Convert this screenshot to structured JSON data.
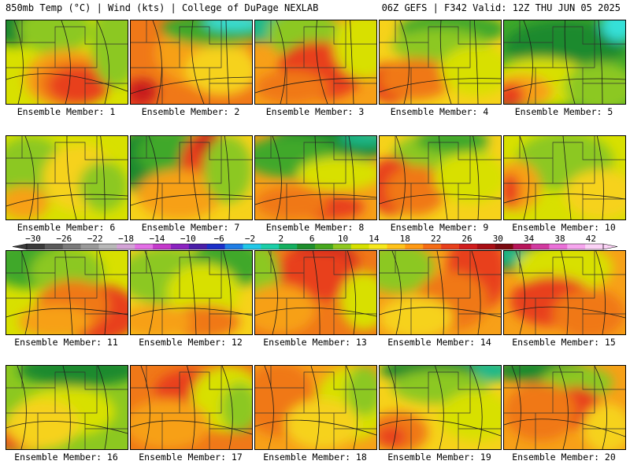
{
  "header": {
    "left": "850mb Temp (°C) | Wind (kts) | College of DuPage NEXLAB",
    "right": "06Z GEFS | F342 Valid: 12Z THU JUN 05 2025"
  },
  "members": [
    "Ensemble Member: 1",
    "Ensemble Member: 2",
    "Ensemble Member: 3",
    "Ensemble Member: 4",
    "Ensemble Member: 5",
    "Ensemble Member: 6",
    "Ensemble Member: 7",
    "Ensemble Member: 8",
    "Ensemble Member: 9",
    "Ensemble Member: 10",
    "Ensemble Member: 11",
    "Ensemble Member: 12",
    "Ensemble Member: 13",
    "Ensemble Member: 14",
    "Ensemble Member: 15",
    "Ensemble Member: 16",
    "Ensemble Member: 17",
    "Ensemble Member: 18",
    "Ensemble Member: 19",
    "Ensemble Member: 20"
  ],
  "colorbar": {
    "labels": [
      "−30",
      "−26",
      "−22",
      "−18",
      "−14",
      "−10",
      "−6",
      "−2",
      "2",
      "6",
      "10",
      "14",
      "18",
      "22",
      "26",
      "30",
      "34",
      "38",
      "42"
    ],
    "colors": [
      "#3a3a3a",
      "#5a5a5a",
      "#7a7a7a",
      "#999999",
      "#b8b8b8",
      "#d3a3d6",
      "#e36fe6",
      "#c43acb",
      "#8b23c0",
      "#4a1ea8",
      "#1b2fc8",
      "#1f7ee6",
      "#22c8e8",
      "#1ccfa8",
      "#14b060",
      "#1e8e2c",
      "#47a81e",
      "#8fc820",
      "#d6e000",
      "#f7e81c",
      "#ffc21a",
      "#ff9a14",
      "#f56c14",
      "#e8401c",
      "#d01c1c",
      "#a80e14",
      "#7a0a10",
      "#b8165a",
      "#d23aa0",
      "#ea70d8",
      "#f6a6ee",
      "#fbd2f6"
    ]
  },
  "palette": {
    "cyan": "#35e0d8",
    "teal": "#1fb88a",
    "darkgreen": "#1d8a2e",
    "green": "#3fa82a",
    "lightgreen": "#8cc820",
    "yellow": "#d8e000",
    "gold": "#f6d21a",
    "orange": "#f7a018",
    "darkorange": "#f07818",
    "red": "#e8401c",
    "darkred": "#c81c1c"
  },
  "panels": [
    {
      "base": "yellow",
      "blobs": [
        [
          "darkgreen",
          0.1,
          0.05,
          0.35,
          0.25
        ],
        [
          "lightgreen",
          0.4,
          0.1,
          0.3,
          0.3
        ],
        [
          "orange",
          0.5,
          0.7,
          0.35,
          0.35
        ],
        [
          "darkorange",
          0.55,
          0.75,
          0.3,
          0.28
        ],
        [
          "red",
          0.6,
          0.78,
          0.25,
          0.22
        ],
        [
          "lightgreen",
          0.9,
          0.3,
          0.2,
          0.5
        ]
      ]
    },
    {
      "base": "darkorange",
      "blobs": [
        [
          "orange",
          0.6,
          0.4,
          0.4,
          0.4
        ],
        [
          "green",
          0.7,
          0.1,
          0.45,
          0.2
        ],
        [
          "cyan",
          0.85,
          0.02,
          0.25,
          0.1
        ],
        [
          "red",
          0.05,
          0.9,
          0.15,
          0.2
        ],
        [
          "gold",
          0.75,
          0.6,
          0.3,
          0.3
        ],
        [
          "darkred",
          0.1,
          0.85,
          0.12,
          0.15
        ]
      ]
    },
    {
      "base": "orange",
      "blobs": [
        [
          "teal",
          0.15,
          0.05,
          0.4,
          0.2
        ],
        [
          "lightgreen",
          0.4,
          0.15,
          0.3,
          0.3
        ],
        [
          "darkred",
          0.5,
          0.55,
          0.3,
          0.3
        ],
        [
          "red",
          0.55,
          0.6,
          0.35,
          0.35
        ],
        [
          "yellow",
          0.9,
          0.3,
          0.25,
          0.4
        ],
        [
          "darkorange",
          0.3,
          0.8,
          0.3,
          0.2
        ]
      ]
    },
    {
      "base": "gold",
      "blobs": [
        [
          "green",
          0.6,
          0.1,
          0.45,
          0.2
        ],
        [
          "lightgreen",
          0.5,
          0.3,
          0.4,
          0.2
        ],
        [
          "red",
          0.1,
          0.75,
          0.2,
          0.25
        ],
        [
          "darkorange",
          0.3,
          0.7,
          0.3,
          0.25
        ],
        [
          "yellow",
          0.8,
          0.6,
          0.3,
          0.3
        ]
      ]
    },
    {
      "base": "green",
      "blobs": [
        [
          "darkgreen",
          0.5,
          0.3,
          0.5,
          0.3
        ],
        [
          "cyan",
          0.95,
          0.05,
          0.15,
          0.2
        ],
        [
          "yellow",
          0.3,
          0.75,
          0.45,
          0.3
        ],
        [
          "orange",
          0.15,
          0.85,
          0.25,
          0.2
        ],
        [
          "red",
          0.05,
          0.9,
          0.12,
          0.15
        ],
        [
          "lightgreen",
          0.8,
          0.8,
          0.3,
          0.3
        ]
      ]
    },
    {
      "base": "yellow",
      "blobs": [
        [
          "lightgreen",
          0.2,
          0.4,
          0.3,
          0.4
        ],
        [
          "orange",
          0.15,
          0.8,
          0.2,
          0.2
        ],
        [
          "gold",
          0.6,
          0.5,
          0.3,
          0.4
        ],
        [
          "lightgreen",
          0.8,
          0.6,
          0.2,
          0.3
        ]
      ]
    },
    {
      "base": "gold",
      "blobs": [
        [
          "darkgreen",
          0.15,
          0.3,
          0.3,
          0.4
        ],
        [
          "green",
          0.35,
          0.2,
          0.3,
          0.3
        ],
        [
          "red",
          0.6,
          0.4,
          0.2,
          0.45
        ],
        [
          "darkred",
          0.65,
          0.1,
          0.1,
          0.2
        ],
        [
          "orange",
          0.4,
          0.7,
          0.35,
          0.3
        ],
        [
          "lightgreen",
          0.8,
          0.4,
          0.2,
          0.4
        ]
      ]
    },
    {
      "base": "orange",
      "blobs": [
        [
          "darkgreen",
          0.6,
          0.1,
          0.5,
          0.25
        ],
        [
          "green",
          0.3,
          0.25,
          0.4,
          0.25
        ],
        [
          "teal",
          0.9,
          0.02,
          0.2,
          0.1
        ],
        [
          "yellow",
          0.7,
          0.45,
          0.35,
          0.2
        ],
        [
          "red",
          0.6,
          0.85,
          0.3,
          0.15
        ],
        [
          "darkorange",
          0.3,
          0.8,
          0.3,
          0.2
        ]
      ]
    },
    {
      "base": "gold",
      "blobs": [
        [
          "lightgreen",
          0.5,
          0.25,
          0.4,
          0.3
        ],
        [
          "red",
          0.1,
          0.6,
          0.2,
          0.35
        ],
        [
          "darkorange",
          0.3,
          0.65,
          0.25,
          0.3
        ],
        [
          "yellow",
          0.75,
          0.5,
          0.3,
          0.3
        ],
        [
          "green",
          0.6,
          0.05,
          0.3,
          0.15
        ]
      ]
    },
    {
      "base": "yellow",
      "blobs": [
        [
          "lightgreen",
          0.5,
          0.3,
          0.4,
          0.35
        ],
        [
          "orange",
          0.1,
          0.6,
          0.2,
          0.3
        ],
        [
          "red",
          0.05,
          0.65,
          0.08,
          0.2
        ],
        [
          "gold",
          0.8,
          0.7,
          0.3,
          0.3
        ]
      ]
    },
    {
      "base": "yellow",
      "blobs": [
        [
          "green",
          0.2,
          0.15,
          0.35,
          0.3
        ],
        [
          "lightgreen",
          0.5,
          0.25,
          0.3,
          0.3
        ],
        [
          "red",
          0.75,
          0.75,
          0.35,
          0.35
        ],
        [
          "darkorange",
          0.55,
          0.65,
          0.3,
          0.3
        ],
        [
          "orange",
          0.4,
          0.85,
          0.3,
          0.2
        ]
      ]
    },
    {
      "base": "gold",
      "blobs": [
        [
          "lightgreen",
          0.3,
          0.3,
          0.4,
          0.35
        ],
        [
          "green",
          0.8,
          0.15,
          0.3,
          0.3
        ],
        [
          "yellow",
          0.6,
          0.5,
          0.3,
          0.35
        ],
        [
          "darkorange",
          0.6,
          0.85,
          0.3,
          0.2
        ],
        [
          "orange",
          0.2,
          0.85,
          0.3,
          0.2
        ]
      ]
    },
    {
      "base": "darkorange",
      "blobs": [
        [
          "darkred",
          0.55,
          0.15,
          0.3,
          0.25
        ],
        [
          "red",
          0.5,
          0.3,
          0.4,
          0.3
        ],
        [
          "lightgreen",
          0.05,
          0.3,
          0.15,
          0.4
        ],
        [
          "orange",
          0.2,
          0.7,
          0.3,
          0.3
        ],
        [
          "yellow",
          0.9,
          0.6,
          0.2,
          0.35
        ]
      ]
    },
    {
      "base": "orange",
      "blobs": [
        [
          "lightgreen",
          0.15,
          0.2,
          0.3,
          0.3
        ],
        [
          "red",
          0.8,
          0.25,
          0.25,
          0.5
        ],
        [
          "darkorange",
          0.6,
          0.6,
          0.3,
          0.35
        ],
        [
          "gold",
          0.3,
          0.8,
          0.3,
          0.25
        ]
      ]
    },
    {
      "base": "orange",
      "blobs": [
        [
          "darkgreen",
          0.2,
          0.05,
          0.4,
          0.2
        ],
        [
          "teal",
          0.05,
          0.05,
          0.15,
          0.1
        ],
        [
          "yellow",
          0.5,
          0.2,
          0.4,
          0.3
        ],
        [
          "red",
          0.4,
          0.6,
          0.35,
          0.3
        ],
        [
          "darkorange",
          0.7,
          0.75,
          0.3,
          0.3
        ]
      ]
    },
    {
      "base": "lightgreen",
      "blobs": [
        [
          "darkgreen",
          0.6,
          0.05,
          0.5,
          0.2
        ],
        [
          "yellow",
          0.5,
          0.55,
          0.4,
          0.3
        ],
        [
          "orange",
          0.15,
          0.85,
          0.25,
          0.2
        ],
        [
          "red",
          0.05,
          0.9,
          0.12,
          0.12
        ],
        [
          "gold",
          0.3,
          0.7,
          0.3,
          0.3
        ]
      ]
    },
    {
      "base": "darkorange",
      "blobs": [
        [
          "red",
          0.5,
          0.3,
          0.3,
          0.25
        ],
        [
          "yellow",
          0.8,
          0.4,
          0.3,
          0.4
        ],
        [
          "lightgreen",
          0.9,
          0.5,
          0.15,
          0.3
        ],
        [
          "orange",
          0.3,
          0.7,
          0.35,
          0.3
        ]
      ]
    },
    {
      "base": "orange",
      "blobs": [
        [
          "darkorange",
          0.2,
          0.4,
          0.3,
          0.45
        ],
        [
          "yellow",
          0.8,
          0.45,
          0.3,
          0.45
        ],
        [
          "lightgreen",
          0.9,
          0.3,
          0.15,
          0.3
        ],
        [
          "gold",
          0.55,
          0.7,
          0.3,
          0.3
        ]
      ]
    },
    {
      "base": "gold",
      "blobs": [
        [
          "teal",
          0.7,
          0.05,
          0.5,
          0.15
        ],
        [
          "darkgreen",
          0.4,
          0.05,
          0.4,
          0.15
        ],
        [
          "lightgreen",
          0.5,
          0.25,
          0.4,
          0.2
        ],
        [
          "darkorange",
          0.15,
          0.8,
          0.25,
          0.25
        ],
        [
          "red",
          0.1,
          0.85,
          0.12,
          0.12
        ],
        [
          "yellow",
          0.8,
          0.6,
          0.3,
          0.3
        ]
      ]
    },
    {
      "base": "orange",
      "blobs": [
        [
          "darkgreen",
          0.3,
          0.05,
          0.4,
          0.15
        ],
        [
          "lightgreen",
          0.6,
          0.2,
          0.3,
          0.2
        ],
        [
          "red",
          0.6,
          0.5,
          0.2,
          0.25
        ],
        [
          "darkorange",
          0.3,
          0.55,
          0.3,
          0.35
        ],
        [
          "gold",
          0.85,
          0.75,
          0.2,
          0.3
        ]
      ]
    }
  ]
}
